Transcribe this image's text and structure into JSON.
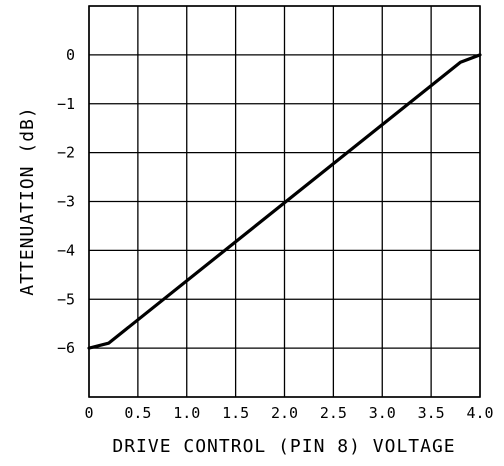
{
  "chart_data": {
    "type": "line",
    "xlabel": "DRIVE CONTROL (PIN 8) VOLTAGE",
    "ylabel": "ATTENUATION (dB)",
    "xlim": [
      0,
      4.0
    ],
    "ylim": [
      -7,
      1
    ],
    "x_ticks": [
      0,
      0.5,
      1.0,
      1.5,
      2.0,
      2.5,
      3.0,
      3.5,
      4.0
    ],
    "x_tick_labels": [
      "0",
      "0.5",
      "1.0",
      "1.5",
      "2.0",
      "2.5",
      "3.0",
      "3.5",
      "4.0"
    ],
    "y_ticks": [
      0,
      -1,
      -2,
      -3,
      -4,
      -5,
      -6
    ],
    "y_tick_labels": [
      "0",
      "−1",
      "−2",
      "−3",
      "−4",
      "−5",
      "−6"
    ],
    "grid": true,
    "series": [
      {
        "x": [
          0,
          0.2,
          3.8,
          4.0
        ],
        "y": [
          -6.0,
          -5.9,
          -0.15,
          0.0
        ]
      }
    ]
  }
}
